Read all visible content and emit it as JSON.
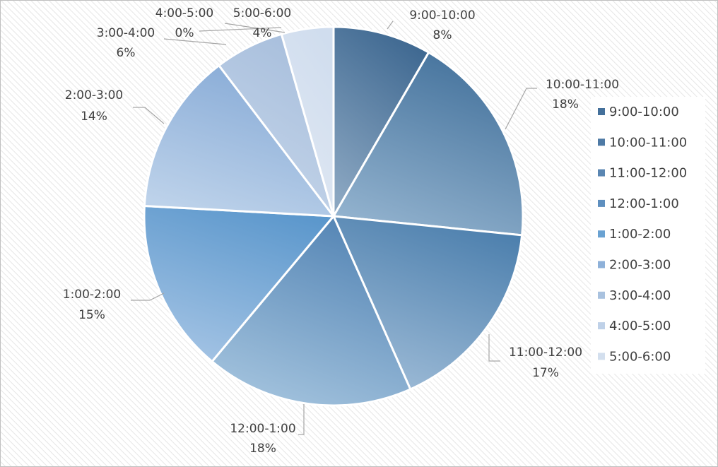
{
  "chart_data": {
    "type": "pie",
    "title": "",
    "categories": [
      "9:00-10:00",
      "10:00-11:00",
      "11:00-12:00",
      "12:00-1:00",
      "1:00-2:00",
      "2:00-3:00",
      "3:00-4:00",
      "4:00-5:00",
      "5:00-6:00"
    ],
    "values": [
      8.5,
      18.5,
      17,
      18,
      15,
      14,
      6,
      0,
      4.5
    ],
    "data_labels": [
      "8%",
      "18%",
      "17%",
      "18%",
      "15%",
      "14%",
      "6%",
      "0%",
      "4%"
    ],
    "legend_position": "right",
    "colors_dark": [
      "#3d6790",
      "#44729c",
      "#4c7fad",
      "#5384b4",
      "#5b97cc",
      "#86aad6",
      "#a7bedc",
      "#bdd0e8",
      "#d0ddee"
    ],
    "colors_light": [
      "#8aa6c1",
      "#92b2ce",
      "#9cbad6",
      "#a2c2dd",
      "#a3c3e4",
      "#bdd2ea",
      "#c6d6ea",
      "#d6e2f0",
      "#e0e8f3"
    ],
    "legend_colors": [
      "#44709b",
      "#4e7aa5",
      "#5a86b2",
      "#5e8fbf",
      "#6aa2d2",
      "#8eb1d9",
      "#a9c2df",
      "#bfd1e8",
      "#d3dfee"
    ]
  }
}
